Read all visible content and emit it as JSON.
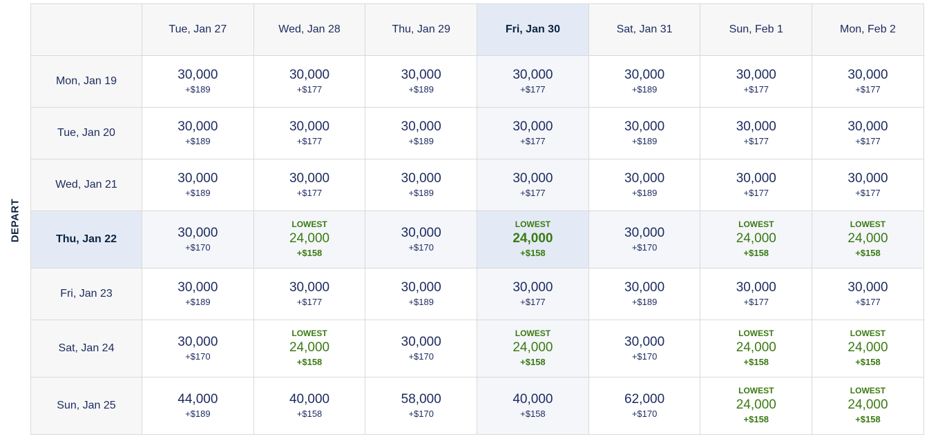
{
  "axis_label": "DEPART",
  "lowest_label": "LOWEST",
  "selected_return_index": 3,
  "selected_depart_index": 3,
  "return_dates": [
    "Tue, Jan 27",
    "Wed, Jan 28",
    "Thu, Jan 29",
    "Fri, Jan 30",
    "Sat, Jan 31",
    "Sun, Feb 1",
    "Mon, Feb 2"
  ],
  "rows": [
    {
      "depart": "Mon, Jan 19",
      "cells": [
        {
          "miles": "30,000",
          "fee": "+$189",
          "lowest": false
        },
        {
          "miles": "30,000",
          "fee": "+$177",
          "lowest": false
        },
        {
          "miles": "30,000",
          "fee": "+$189",
          "lowest": false
        },
        {
          "miles": "30,000",
          "fee": "+$177",
          "lowest": false
        },
        {
          "miles": "30,000",
          "fee": "+$189",
          "lowest": false
        },
        {
          "miles": "30,000",
          "fee": "+$177",
          "lowest": false
        },
        {
          "miles": "30,000",
          "fee": "+$177",
          "lowest": false
        }
      ]
    },
    {
      "depart": "Tue, Jan 20",
      "cells": [
        {
          "miles": "30,000",
          "fee": "+$189",
          "lowest": false
        },
        {
          "miles": "30,000",
          "fee": "+$177",
          "lowest": false
        },
        {
          "miles": "30,000",
          "fee": "+$189",
          "lowest": false
        },
        {
          "miles": "30,000",
          "fee": "+$177",
          "lowest": false
        },
        {
          "miles": "30,000",
          "fee": "+$189",
          "lowest": false
        },
        {
          "miles": "30,000",
          "fee": "+$177",
          "lowest": false
        },
        {
          "miles": "30,000",
          "fee": "+$177",
          "lowest": false
        }
      ]
    },
    {
      "depart": "Wed, Jan 21",
      "cells": [
        {
          "miles": "30,000",
          "fee": "+$189",
          "lowest": false
        },
        {
          "miles": "30,000",
          "fee": "+$177",
          "lowest": false
        },
        {
          "miles": "30,000",
          "fee": "+$189",
          "lowest": false
        },
        {
          "miles": "30,000",
          "fee": "+$177",
          "lowest": false
        },
        {
          "miles": "30,000",
          "fee": "+$189",
          "lowest": false
        },
        {
          "miles": "30,000",
          "fee": "+$177",
          "lowest": false
        },
        {
          "miles": "30,000",
          "fee": "+$177",
          "lowest": false
        }
      ]
    },
    {
      "depart": "Thu, Jan 22",
      "cells": [
        {
          "miles": "30,000",
          "fee": "+$170",
          "lowest": false
        },
        {
          "miles": "24,000",
          "fee": "+$158",
          "lowest": true
        },
        {
          "miles": "30,000",
          "fee": "+$170",
          "lowest": false
        },
        {
          "miles": "24,000",
          "fee": "+$158",
          "lowest": true
        },
        {
          "miles": "30,000",
          "fee": "+$170",
          "lowest": false
        },
        {
          "miles": "24,000",
          "fee": "+$158",
          "lowest": true
        },
        {
          "miles": "24,000",
          "fee": "+$158",
          "lowest": true
        }
      ]
    },
    {
      "depart": "Fri, Jan 23",
      "cells": [
        {
          "miles": "30,000",
          "fee": "+$189",
          "lowest": false
        },
        {
          "miles": "30,000",
          "fee": "+$177",
          "lowest": false
        },
        {
          "miles": "30,000",
          "fee": "+$189",
          "lowest": false
        },
        {
          "miles": "30,000",
          "fee": "+$177",
          "lowest": false
        },
        {
          "miles": "30,000",
          "fee": "+$189",
          "lowest": false
        },
        {
          "miles": "30,000",
          "fee": "+$177",
          "lowest": false
        },
        {
          "miles": "30,000",
          "fee": "+$177",
          "lowest": false
        }
      ]
    },
    {
      "depart": "Sat, Jan 24",
      "cells": [
        {
          "miles": "30,000",
          "fee": "+$170",
          "lowest": false
        },
        {
          "miles": "24,000",
          "fee": "+$158",
          "lowest": true
        },
        {
          "miles": "30,000",
          "fee": "+$170",
          "lowest": false
        },
        {
          "miles": "24,000",
          "fee": "+$158",
          "lowest": true
        },
        {
          "miles": "30,000",
          "fee": "+$170",
          "lowest": false
        },
        {
          "miles": "24,000",
          "fee": "+$158",
          "lowest": true
        },
        {
          "miles": "24,000",
          "fee": "+$158",
          "lowest": true
        }
      ]
    },
    {
      "depart": "Sun, Jan 25",
      "cells": [
        {
          "miles": "44,000",
          "fee": "+$189",
          "lowest": false
        },
        {
          "miles": "40,000",
          "fee": "+$158",
          "lowest": false
        },
        {
          "miles": "58,000",
          "fee": "+$170",
          "lowest": false
        },
        {
          "miles": "40,000",
          "fee": "+$158",
          "lowest": false
        },
        {
          "miles": "62,000",
          "fee": "+$170",
          "lowest": false
        },
        {
          "miles": "24,000",
          "fee": "+$158",
          "lowest": true
        },
        {
          "miles": "24,000",
          "fee": "+$158",
          "lowest": true
        }
      ]
    }
  ],
  "colors": {
    "text": "#1b2a5e",
    "lowest_green": "#3b7a12",
    "selected_header_bg": "#e4eaf5",
    "selected_band_bg": "#f4f6fa",
    "header_bg": "#f7f7f7",
    "border": "#d9d9d9"
  }
}
